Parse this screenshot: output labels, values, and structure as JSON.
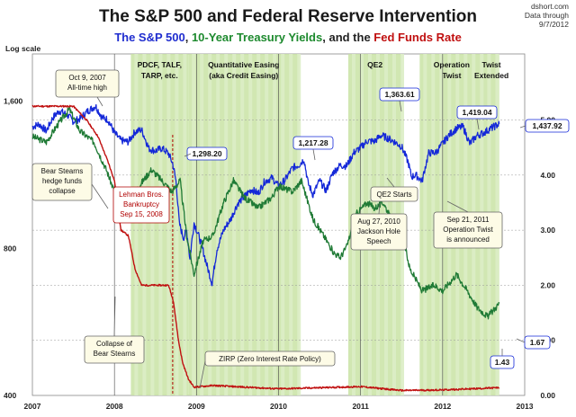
{
  "header": {
    "title": "The S&P 500 and Federal Reserve Intervention",
    "subtitle_parts": [
      {
        "text": "The S&P 500",
        "color": "#1f2dcf"
      },
      {
        "text": ", ",
        "color": "#222222"
      },
      {
        "text": "10-Year Treasury Yields",
        "color": "#1d8a2e"
      },
      {
        "text": ", and the ",
        "color": "#222222"
      },
      {
        "text": "Fed Funds Rate",
        "color": "#c01010"
      }
    ],
    "source_lines": [
      "dshort.com",
      "Data through",
      "9/7/2012"
    ],
    "log_scale_label": "Log scale"
  },
  "colors": {
    "sp500": "#1428d8",
    "treasury": "#1f7a35",
    "fedfunds": "#c01010",
    "shade": "#c9e3a4",
    "shade_light": "#dcedc5"
  },
  "periods": [
    {
      "label_lines": [
        "PDCF, TALF,",
        "TARP, etc."
      ],
      "start": 2008.2,
      "end": 2008.9
    },
    {
      "label_lines": [
        "Quantitative Easing",
        "(aka Credit Easing)"
      ],
      "start": 2008.9,
      "end": 2010.25
    },
    {
      "label_lines": [
        "QE2"
      ],
      "start": 2010.85,
      "end": 2011.5
    },
    {
      "label_lines": [
        "Operation",
        "Twist"
      ],
      "start": 2011.72,
      "end": 2012.5
    },
    {
      "label_lines": [
        "Twist",
        "Extended"
      ],
      "start": 2012.5,
      "end": 2012.69
    }
  ],
  "annotations": [
    {
      "lines": [
        "Oct 9, 2007",
        "All-time high"
      ],
      "style": "box"
    },
    {
      "lines": [
        "Bear Stearns",
        "hedge funds",
        "collapse"
      ],
      "style": "box"
    },
    {
      "lines": [
        "Lehman Bros.",
        "Bankruptcy",
        "Sep 15, 2008"
      ],
      "style": "red"
    },
    {
      "lines": [
        "Collapse of",
        "Bear Stearns"
      ],
      "style": "box"
    },
    {
      "lines": [
        "ZIRP (Zero Interest Rate Policy)"
      ],
      "style": "box"
    },
    {
      "lines": [
        "QE2 Starts"
      ],
      "style": "box"
    },
    {
      "lines": [
        "Aug 27, 2010",
        "Jackson Hole",
        "Speech"
      ],
      "style": "box"
    },
    {
      "lines": [
        "Sep 21, 2011",
        "Operation Twist",
        "is announced"
      ],
      "style": "box"
    }
  ],
  "chart_data": {
    "type": "line",
    "x_tick_labels": [
      "2007",
      "2008",
      "2009",
      "2010",
      "2011",
      "2012",
      "2013"
    ],
    "xlim": [
      2007,
      2013
    ],
    "left_axis": {
      "scale": "log",
      "ticks": [
        {
          "value": 400,
          "label": "400"
        },
        {
          "value": 800,
          "label": "800"
        },
        {
          "value": 1600,
          "label": "1,600"
        }
      ],
      "ylim": [
        400,
        2000
      ]
    },
    "right_axis": {
      "scale": "linear",
      "ticks": [
        "0.00",
        "1.00",
        "2.00",
        "3.00",
        "4.00",
        "5.00"
      ],
      "ylim": [
        0,
        6.2
      ]
    },
    "series": [
      {
        "key": "sp500",
        "axis": "left",
        "points": [
          [
            2007.0,
            1418
          ],
          [
            2007.08,
            1437
          ],
          [
            2007.17,
            1390
          ],
          [
            2007.25,
            1482
          ],
          [
            2007.33,
            1530
          ],
          [
            2007.42,
            1503
          ],
          [
            2007.5,
            1455
          ],
          [
            2007.58,
            1473
          ],
          [
            2007.67,
            1526
          ],
          [
            2007.77,
            1565
          ],
          [
            2007.85,
            1481
          ],
          [
            2007.92,
            1468
          ],
          [
            2008.0,
            1378
          ],
          [
            2008.08,
            1330
          ],
          [
            2008.17,
            1322
          ],
          [
            2008.25,
            1385
          ],
          [
            2008.33,
            1400
          ],
          [
            2008.42,
            1280
          ],
          [
            2008.5,
            1267
          ],
          [
            2008.58,
            1282
          ],
          [
            2008.66,
            1250
          ],
          [
            2008.71,
            1192
          ],
          [
            2008.75,
            1099
          ],
          [
            2008.79,
            900
          ],
          [
            2008.84,
            840
          ],
          [
            2008.88,
            870
          ],
          [
            2008.92,
            760
          ],
          [
            2008.97,
            903
          ],
          [
            2009.05,
            825
          ],
          [
            2009.13,
            735
          ],
          [
            2009.19,
            677
          ],
          [
            2009.25,
            797
          ],
          [
            2009.33,
            872
          ],
          [
            2009.42,
            920
          ],
          [
            2009.5,
            987
          ],
          [
            2009.58,
            1020
          ],
          [
            2009.67,
            1057
          ],
          [
            2009.75,
            1036
          ],
          [
            2009.83,
            1096
          ],
          [
            2009.92,
            1115
          ],
          [
            2010.0,
            1073
          ],
          [
            2010.08,
            1104
          ],
          [
            2010.17,
            1169
          ],
          [
            2010.25,
            1186
          ],
          [
            2010.31,
            1217
          ],
          [
            2010.36,
            1087
          ],
          [
            2010.42,
            1030
          ],
          [
            2010.5,
            1101
          ],
          [
            2010.58,
            1049
          ],
          [
            2010.66,
            1141
          ],
          [
            2010.75,
            1183
          ],
          [
            2010.83,
            1180
          ],
          [
            2010.92,
            1257
          ],
          [
            2011.0,
            1286
          ],
          [
            2011.08,
            1327
          ],
          [
            2011.17,
            1325
          ],
          [
            2011.25,
            1363
          ],
          [
            2011.33,
            1345
          ],
          [
            2011.42,
            1320
          ],
          [
            2011.5,
            1292
          ],
          [
            2011.58,
            1200
          ],
          [
            2011.62,
            1120
          ],
          [
            2011.67,
            1131
          ],
          [
            2011.75,
            1099
          ],
          [
            2011.83,
            1253
          ],
          [
            2011.92,
            1257
          ],
          [
            2012.0,
            1312
          ],
          [
            2012.08,
            1366
          ],
          [
            2012.17,
            1408
          ],
          [
            2012.25,
            1419
          ],
          [
            2012.33,
            1310
          ],
          [
            2012.42,
            1362
          ],
          [
            2012.5,
            1379
          ],
          [
            2012.58,
            1406
          ],
          [
            2012.69,
            1438
          ]
        ]
      },
      {
        "key": "treasury",
        "axis": "right",
        "points": [
          [
            2007.0,
            4.7
          ],
          [
            2007.17,
            4.6
          ],
          [
            2007.3,
            4.9
          ],
          [
            2007.45,
            5.2
          ],
          [
            2007.58,
            4.8
          ],
          [
            2007.75,
            4.6
          ],
          [
            2007.9,
            4.1
          ],
          [
            2008.0,
            3.7
          ],
          [
            2008.17,
            3.5
          ],
          [
            2008.3,
            3.8
          ],
          [
            2008.45,
            4.1
          ],
          [
            2008.58,
            3.9
          ],
          [
            2008.7,
            3.7
          ],
          [
            2008.8,
            3.9
          ],
          [
            2008.88,
            2.9
          ],
          [
            2008.97,
            2.2
          ],
          [
            2009.08,
            2.8
          ],
          [
            2009.2,
            2.9
          ],
          [
            2009.33,
            3.5
          ],
          [
            2009.45,
            3.9
          ],
          [
            2009.58,
            3.6
          ],
          [
            2009.75,
            3.4
          ],
          [
            2009.92,
            3.6
          ],
          [
            2010.0,
            3.8
          ],
          [
            2010.17,
            3.7
          ],
          [
            2010.28,
            3.9
          ],
          [
            2010.42,
            3.2
          ],
          [
            2010.55,
            2.9
          ],
          [
            2010.67,
            2.6
          ],
          [
            2010.75,
            2.5
          ],
          [
            2010.83,
            2.7
          ],
          [
            2010.95,
            3.3
          ],
          [
            2011.08,
            3.5
          ],
          [
            2011.17,
            3.4
          ],
          [
            2011.28,
            3.5
          ],
          [
            2011.4,
            3.1
          ],
          [
            2011.5,
            3.0
          ],
          [
            2011.6,
            2.3
          ],
          [
            2011.75,
            1.9
          ],
          [
            2011.9,
            2.0
          ],
          [
            2012.0,
            1.9
          ],
          [
            2012.17,
            2.2
          ],
          [
            2012.3,
            1.9
          ],
          [
            2012.42,
            1.6
          ],
          [
            2012.55,
            1.43
          ],
          [
            2012.69,
            1.67
          ]
        ]
      },
      {
        "key": "fedfunds",
        "axis": "right",
        "points": [
          [
            2007.0,
            5.25
          ],
          [
            2007.5,
            5.25
          ],
          [
            2007.66,
            5.0
          ],
          [
            2007.8,
            4.7
          ],
          [
            2007.92,
            4.25
          ],
          [
            2008.0,
            3.9
          ],
          [
            2008.08,
            3.0
          ],
          [
            2008.17,
            2.9
          ],
          [
            2008.25,
            2.3
          ],
          [
            2008.33,
            2.0
          ],
          [
            2008.5,
            2.0
          ],
          [
            2008.66,
            2.0
          ],
          [
            2008.72,
            1.7
          ],
          [
            2008.78,
            1.0
          ],
          [
            2008.83,
            0.6
          ],
          [
            2008.9,
            0.3
          ],
          [
            2008.97,
            0.15
          ],
          [
            2009.2,
            0.18
          ],
          [
            2010.0,
            0.12
          ],
          [
            2011.0,
            0.16
          ],
          [
            2011.5,
            0.09
          ],
          [
            2012.0,
            0.1
          ],
          [
            2012.69,
            0.14
          ]
        ]
      }
    ],
    "value_labels": [
      "1,298.20",
      "1,217.28",
      "1,363.61",
      "1,419.04",
      "1,437.92",
      "1.67",
      "1.43"
    ]
  }
}
